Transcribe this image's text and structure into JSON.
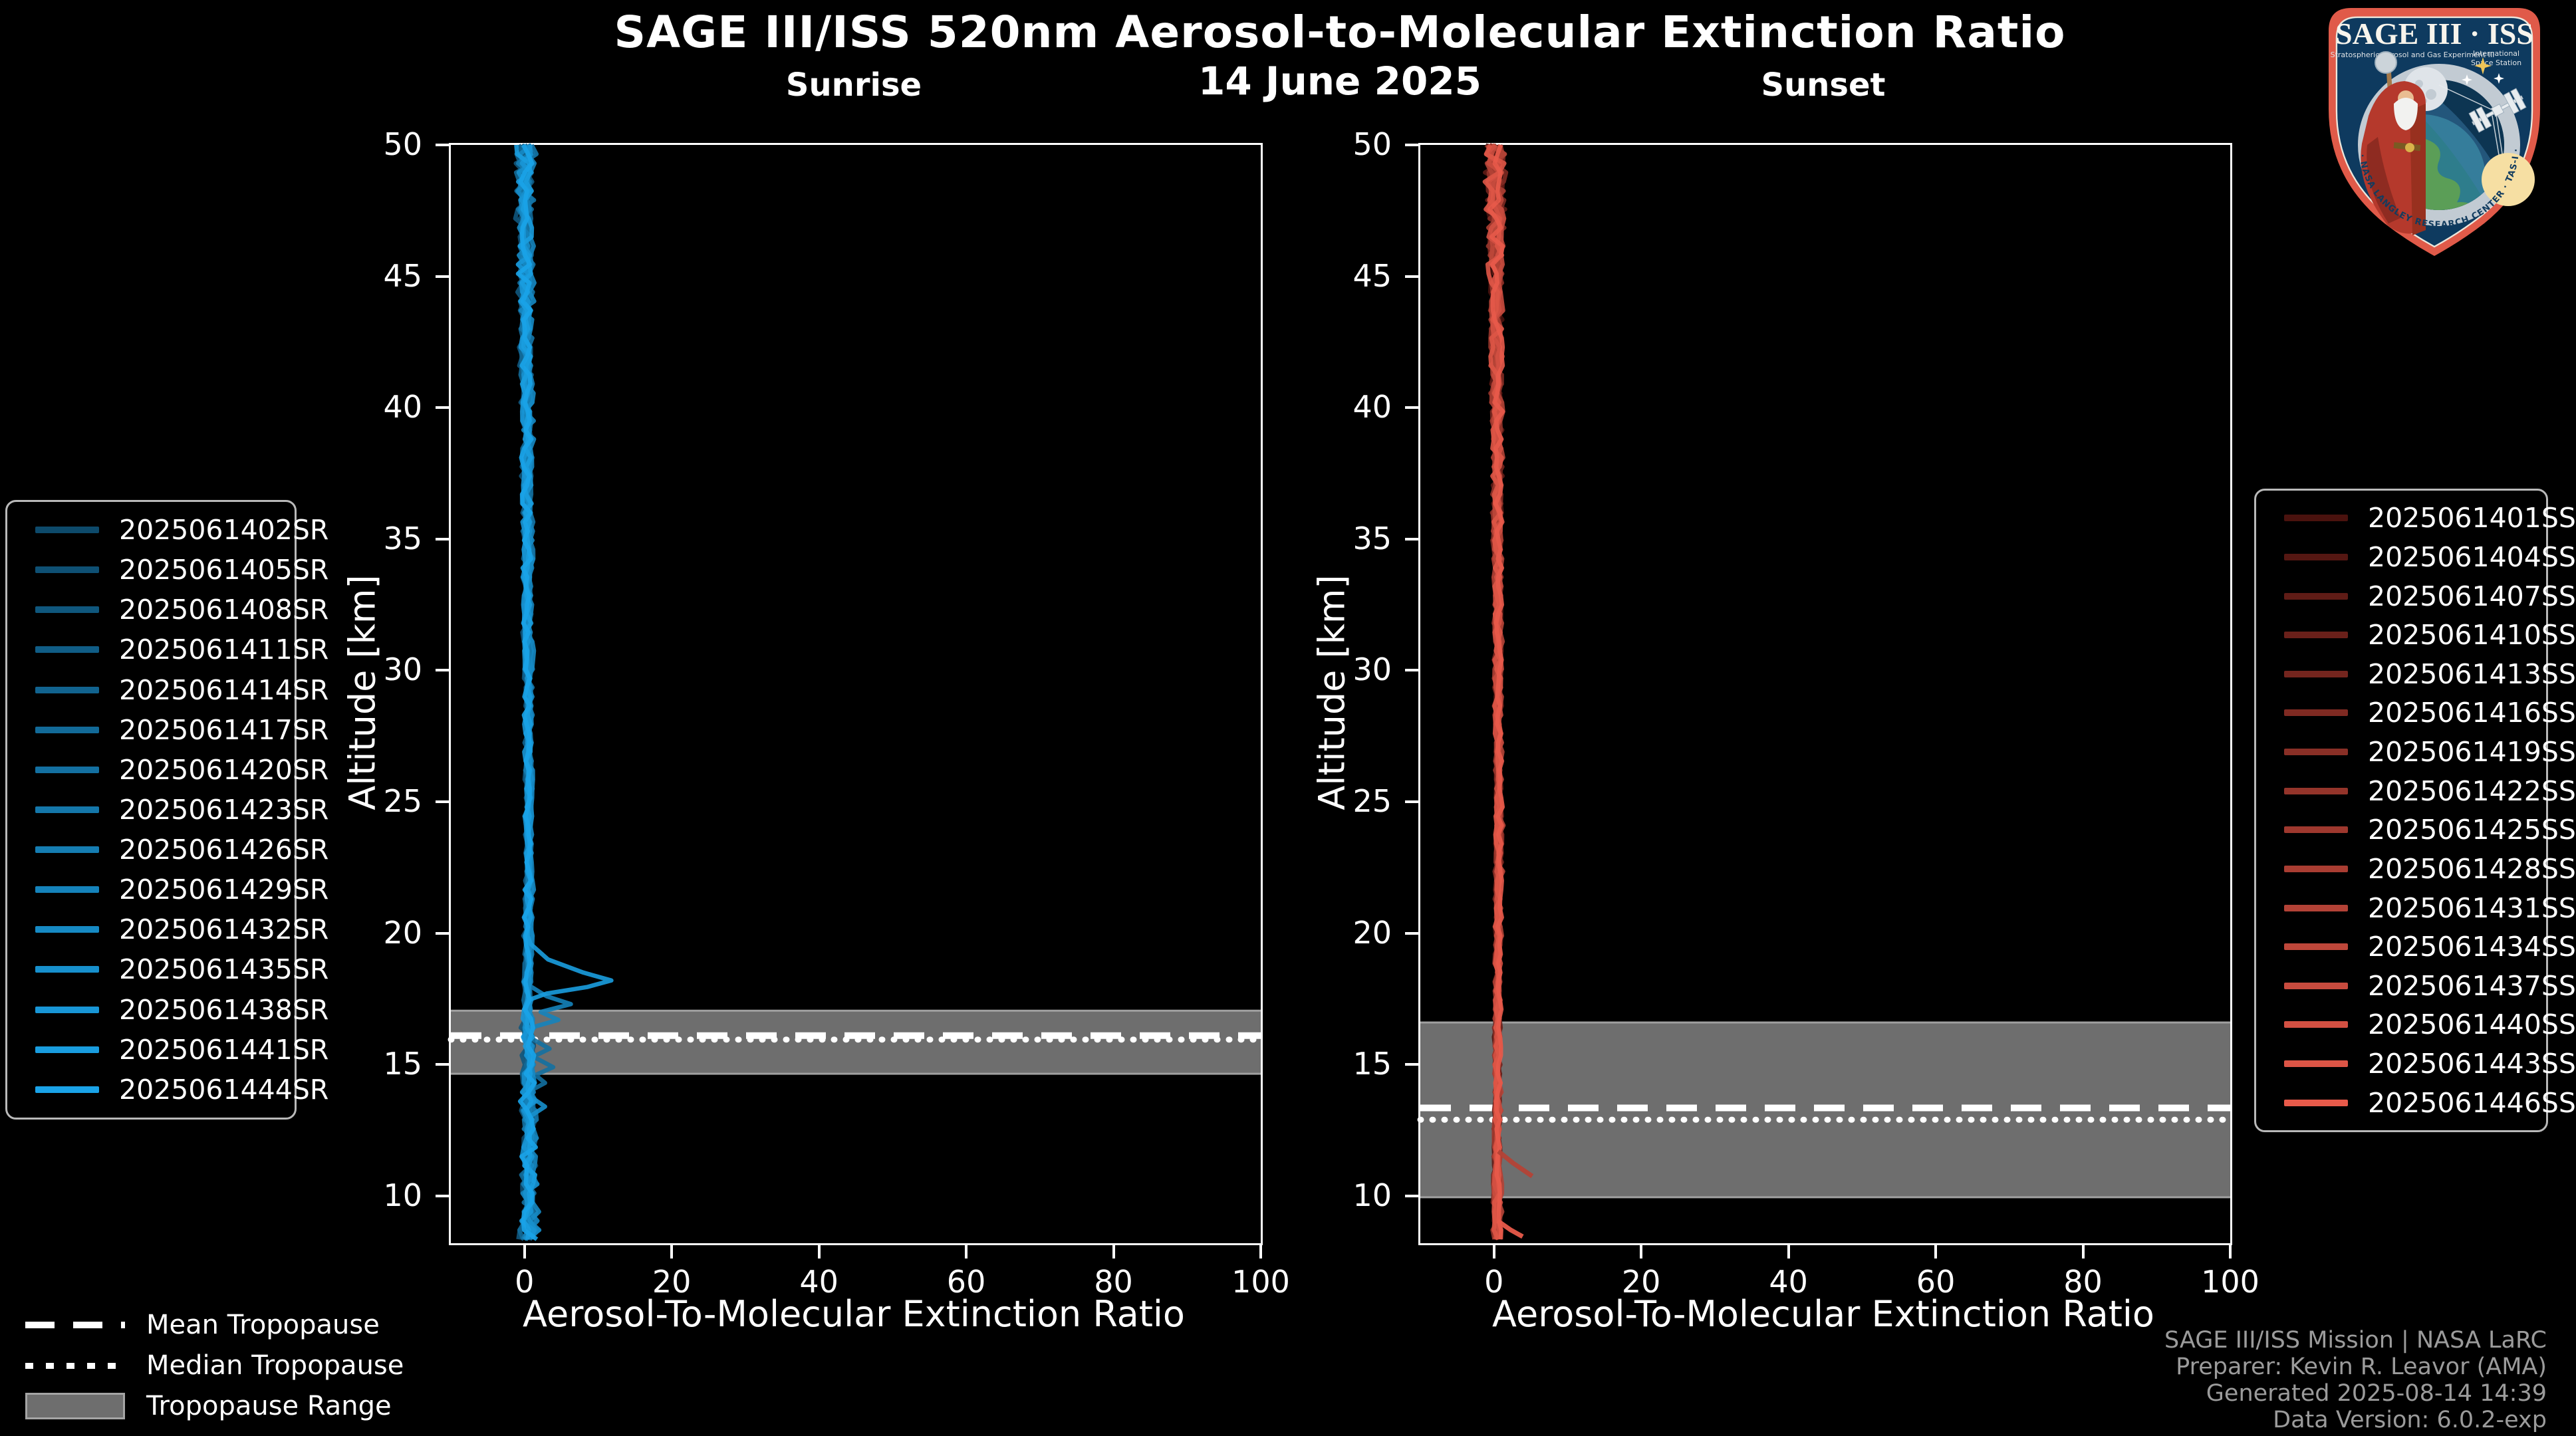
{
  "figure": {
    "title": "SAGE III/ISS 520nm Aerosol-to-Molecular Extinction Ratio",
    "date": "14 June 2025",
    "background": "#000000",
    "text_color": "#ffffff"
  },
  "attribution": {
    "line1": "SAGE III/ISS Mission | NASA LaRC",
    "line2": "Preparer: Kevin R. Leavor (AMA)",
    "line3": "Generated 2025-08-14 14:39",
    "line4": "Data Version: 6.0.2-exp",
    "color": "#9b9b9b"
  },
  "tropopause_legend": {
    "mean_label": "Mean Tropopause",
    "median_label": "Median Tropopause",
    "range_label": "Tropopause Range",
    "range_color": "#6e6e6e"
  },
  "logo": {
    "title": "SAGE III · ISS",
    "subtitle_left": "Stratospheric Aerosol and Gas Experiment III",
    "subtitle_right_1": "International",
    "subtitle_right_2": "Space Station",
    "ring_text": "BALL · NASA LANGLEY RESEARCH CENTER · TAS-I · ESA",
    "border_color": "#e05a49",
    "shield_color": "#0e3a5f"
  },
  "chart_data": [
    {
      "type": "line",
      "id": "sunrise",
      "title": "Sunrise",
      "xlabel": "Aerosol-To-Molecular Extinction Ratio",
      "ylabel": "Altitude [km]",
      "xlim": [
        -10,
        100
      ],
      "ylim": [
        8.2,
        50
      ],
      "xticks": [
        0,
        20,
        40,
        60,
        80,
        100
      ],
      "yticks": [
        10,
        15,
        20,
        25,
        30,
        35,
        40,
        45,
        50
      ],
      "grid": false,
      "legend_position": "left-outside",
      "tropopause": {
        "mean_km": 16.1,
        "median_km": 15.95,
        "range_km": [
          14.65,
          17.05
        ]
      },
      "series": [
        {
          "name": "2025061402SR",
          "color": "#0d4a6b"
        },
        {
          "name": "2025061405SR",
          "color": "#0e5074"
        },
        {
          "name": "2025061408SR",
          "color": "#0f577d"
        },
        {
          "name": "2025061411SR",
          "color": "#105d86"
        },
        {
          "name": "2025061414SR",
          "color": "#11638f"
        },
        {
          "name": "2025061417SR",
          "color": "#126a98"
        },
        {
          "name": "2025061420SR",
          "color": "#1370a1"
        },
        {
          "name": "2025061423SR",
          "color": "#1477aa"
        },
        {
          "name": "2025061426SR",
          "color": "#157db2"
        },
        {
          "name": "2025061429SR",
          "color": "#1583bb"
        },
        {
          "name": "2025061432SR",
          "color": "#168ac4"
        },
        {
          "name": "2025061435SR",
          "color": "#1790cd"
        },
        {
          "name": "2025061438SR",
          "color": "#1896d6"
        },
        {
          "name": "2025061441SR",
          "color": "#199ddf"
        },
        {
          "name": "2025061444SR",
          "color": "#1aa3e8"
        }
      ],
      "curve_gen": {
        "seed": 11,
        "step": 0.35,
        "series_offset": 0.5,
        "series_amp": [
          0.9,
          0.7,
          1.1,
          0.6,
          0.8,
          1.0,
          0.75,
          0.95,
          0.65,
          0.85,
          1.05,
          0.7,
          0.9,
          0.8,
          1.0
        ],
        "base": [
          [
            50,
            0.1
          ],
          [
            44,
            0.2
          ],
          [
            36,
            0.45
          ],
          [
            28,
            0.55
          ],
          [
            22,
            0.6
          ],
          [
            19,
            0.5
          ],
          [
            17,
            0.45
          ],
          [
            15,
            0.55
          ],
          [
            12,
            0.6
          ],
          [
            8.2,
            0.55
          ]
        ],
        "noise": [
          [
            50,
            1.5
          ],
          [
            47,
            1.2
          ],
          [
            44,
            0.9
          ],
          [
            38,
            0.7
          ],
          [
            30,
            0.55
          ],
          [
            24,
            0.45
          ],
          [
            20,
            0.5
          ],
          [
            18,
            0.6
          ],
          [
            16,
            0.9
          ],
          [
            14,
            1.0
          ],
          [
            12,
            1.1
          ],
          [
            10,
            1.2
          ],
          [
            8.2,
            1.3
          ]
        ],
        "features": {
          "13": [
            [
              19.6,
              0.8
            ],
            [
              19.0,
              3.2
            ],
            [
              18.5,
              8.0
            ],
            [
              18.2,
              11.8
            ],
            [
              17.95,
              8.5
            ],
            [
              17.7,
              3.0
            ],
            [
              17.5,
              1.0
            ]
          ],
          "9": [
            [
              18.0,
              0.7
            ],
            [
              17.6,
              3.0
            ],
            [
              17.3,
              6.3
            ],
            [
              17.0,
              2.2
            ],
            [
              16.7,
              4.6
            ],
            [
              16.45,
              1.5
            ]
          ],
          "6": [
            [
              16.0,
              0.9
            ],
            [
              15.6,
              3.4
            ],
            [
              15.3,
              1.2
            ],
            [
              14.9,
              3.9
            ],
            [
              14.6,
              1.5
            ],
            [
              14.3,
              2.8
            ],
            [
              14.0,
              0.8
            ]
          ],
          "11": [
            [
              13.8,
              0.7
            ],
            [
              13.4,
              2.8
            ],
            [
              13.05,
              0.9
            ]
          ]
        },
        "extra_segments": []
      }
    },
    {
      "type": "line",
      "id": "sunset",
      "title": "Sunset",
      "xlabel": "Aerosol-To-Molecular Extinction Ratio",
      "ylabel": "Altitude [km]",
      "xlim": [
        -10,
        100
      ],
      "ylim": [
        8.2,
        50
      ],
      "xticks": [
        0,
        20,
        40,
        60,
        80,
        100
      ],
      "yticks": [
        10,
        15,
        20,
        25,
        30,
        35,
        40,
        45,
        50
      ],
      "grid": false,
      "legend_position": "right-outside",
      "tropopause": {
        "mean_km": 13.35,
        "median_km": 12.9,
        "range_km": [
          9.95,
          16.6
        ]
      },
      "series": [
        {
          "name": "2025061401SS",
          "color": "#4a120e"
        },
        {
          "name": "2025061404SS",
          "color": "#551712"
        },
        {
          "name": "2025061407SS",
          "color": "#5f1c16"
        },
        {
          "name": "2025061410SS",
          "color": "#6a201a"
        },
        {
          "name": "2025061413SS",
          "color": "#74251e"
        },
        {
          "name": "2025061416SS",
          "color": "#7f2a22"
        },
        {
          "name": "2025061419SS",
          "color": "#892f26"
        },
        {
          "name": "2025061422SS",
          "color": "#94342a"
        },
        {
          "name": "2025061425SS",
          "color": "#9e382e"
        },
        {
          "name": "2025061428SS",
          "color": "#a93d32"
        },
        {
          "name": "2025061431SS",
          "color": "#b34236"
        },
        {
          "name": "2025061434SS",
          "color": "#be473a"
        },
        {
          "name": "2025061437SS",
          "color": "#c84b3e"
        },
        {
          "name": "2025061440SS",
          "color": "#d35042"
        },
        {
          "name": "2025061443SS",
          "color": "#dd5546"
        },
        {
          "name": "2025061446SS",
          "color": "#e85a4a"
        }
      ],
      "curve_gen": {
        "seed": 77,
        "step": 0.35,
        "series_offset": 0.45,
        "series_amp": [
          0.9,
          0.7,
          1.0,
          0.6,
          0.8,
          1.05,
          0.75,
          0.9,
          0.65,
          0.85,
          1.0,
          0.7,
          0.9,
          0.8,
          0.95,
          0.75
        ],
        "base": [
          [
            50,
            0.2
          ],
          [
            45,
            0.3
          ],
          [
            38,
            0.5
          ],
          [
            30,
            0.55
          ],
          [
            24,
            0.7
          ],
          [
            20,
            0.6
          ],
          [
            16,
            0.5
          ],
          [
            12,
            0.45
          ],
          [
            8.2,
            0.4
          ]
        ],
        "noise": [
          [
            50,
            1.6
          ],
          [
            47,
            1.3
          ],
          [
            44,
            1.0
          ],
          [
            40,
            0.8
          ],
          [
            34,
            0.6
          ],
          [
            28,
            0.5
          ],
          [
            22,
            0.45
          ],
          [
            18,
            0.4
          ],
          [
            14,
            0.45
          ],
          [
            11,
            0.5
          ],
          [
            8.2,
            0.6
          ]
        ],
        "features": {},
        "extra_segments": [
          {
            "series": 10,
            "points": [
              [
                11.7,
                0.6
              ],
              [
                11.25,
                2.6
              ],
              [
                10.75,
                5.2
              ]
            ]
          },
          {
            "series": 15,
            "points": [
              [
                9.05,
                0.5
              ],
              [
                8.7,
                2.3
              ],
              [
                8.45,
                3.9
              ]
            ]
          }
        ]
      }
    }
  ]
}
